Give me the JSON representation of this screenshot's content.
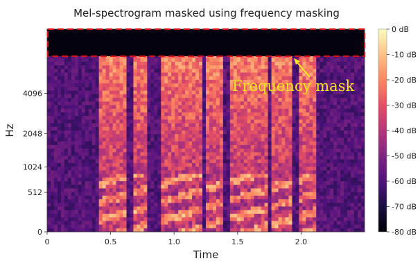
{
  "chart_data": {
    "type": "heatmap",
    "title": "Mel-spectrogram masked using frequency masking",
    "xlabel": "Time",
    "ylabel": "Hz",
    "x_ticks": [
      "0",
      "0.5",
      "1.0",
      "1.5",
      "2.0"
    ],
    "x_tick_values": [
      0,
      0.5,
      1.0,
      1.5,
      2.0
    ],
    "xlim": [
      0,
      2.5
    ],
    "y_ticks": [
      "0",
      "512",
      "1024",
      "2048",
      "4096"
    ],
    "y_scale": "mel",
    "colorbar": {
      "ticks": [
        "0 dB",
        "-10 dB",
        "-20 dB",
        "-30 dB",
        "-40 dB",
        "-50 dB",
        "-60 dB",
        "-70 dB",
        "-80 dB"
      ],
      "range": [
        -80,
        0
      ],
      "colormap": "magma"
    },
    "mask": {
      "label": "Frequency mask",
      "color": "#d7141a",
      "style": "dashed",
      "location": "top band"
    },
    "annotation_color": "#f5e81c",
    "grid": false
  }
}
